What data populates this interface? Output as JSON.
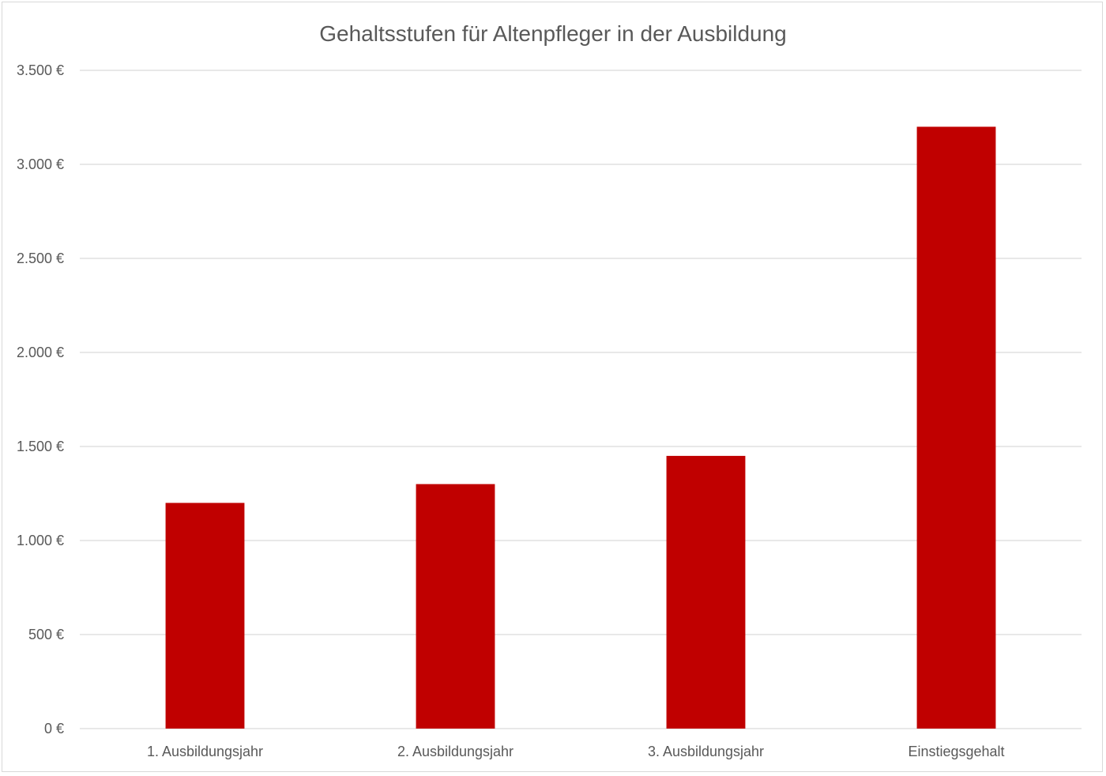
{
  "chart_data": {
    "type": "bar",
    "title": "Gehaltsstufen für Altenpfleger in der Ausbildung",
    "categories": [
      "1. Ausbildungsjahr",
      "2. Ausbildungsjahr",
      "3. Ausbildungsjahr",
      "Einstiegsgehalt"
    ],
    "values": [
      1200,
      1300,
      1450,
      3200
    ],
    "ylim": [
      0,
      3500
    ],
    "yticks": [
      0,
      500,
      1000,
      1500,
      2000,
      2500,
      3000,
      3500
    ],
    "ytick_labels": [
      "0 €",
      "500 €",
      "1.000 €",
      "1.500 €",
      "2.000 €",
      "2.500 €",
      "3.000 €",
      "3.500 €"
    ],
    "xlabel": "",
    "ylabel": "",
    "grid": true,
    "legend": "none",
    "bar_color": "#c00000"
  }
}
